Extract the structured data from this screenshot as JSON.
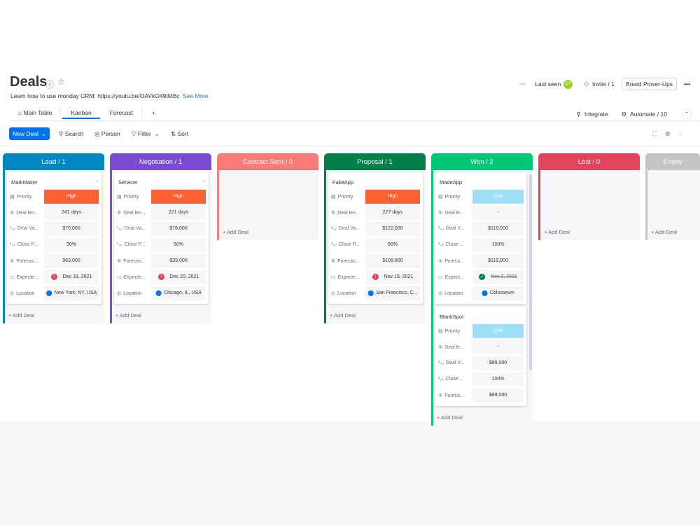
{
  "header": {
    "title": "Deals",
    "subtitle": "Learn how to use monday CRM: https://youtu.be/OAVkO49tMBc",
    "see_more": "See More",
    "last_seen": "Last seen",
    "avatar": "OT",
    "invite": "Invite / 1",
    "power_ups": "Board Power-Ups",
    "more": "•••"
  },
  "tabs": [
    {
      "label": "Main Table",
      "icon": "home-icon"
    },
    {
      "label": "Kanban"
    },
    {
      "label": "Forecast"
    },
    {
      "label": "+"
    }
  ],
  "tab_actions": {
    "integrate": "Integrate",
    "automate": "Automate / 10"
  },
  "toolbar": {
    "new_deal": "New Deal",
    "search": "Search",
    "person": "Person",
    "filter": "Filter",
    "sort": "Sort"
  },
  "colors": {
    "high": "#fd6132",
    "low": "#9fdff7",
    "lead": "#0086c0",
    "negotiation": "#784bd1",
    "contract": "#fb7b7b",
    "proposal": "#037f4c",
    "won": "#00c875",
    "lost": "#e2445c",
    "empty": "#c4c4c4"
  },
  "add_deal": "+ Add Deal",
  "columns": [
    {
      "title": "Lead / 1",
      "color": "#0086c0",
      "cards": [
        {
          "name": "MarkMaker",
          "fields": [
            [
              "Priority",
              "High",
              "high"
            ],
            [
              "Deal len...",
              "241 days"
            ],
            [
              "Deal Va...",
              "$70,000"
            ],
            [
              "Close P...",
              "90%"
            ],
            [
              "Forecas...",
              "$63,000"
            ],
            [
              "Expecte...",
              "Dec 18, 2021",
              "overdue"
            ],
            [
              "Location",
              "New York, NY, USA",
              "loc"
            ]
          ]
        }
      ]
    },
    {
      "title": "Negotiation / 1",
      "color": "#784bd1",
      "cards": [
        {
          "name": "Servicer",
          "fields": [
            [
              "Priority",
              "High",
              "high"
            ],
            [
              "Deal len...",
              "221 days"
            ],
            [
              "Deal Va...",
              "$78,000"
            ],
            [
              "Close P...",
              "50%"
            ],
            [
              "Forecas...",
              "$39,000"
            ],
            [
              "Expecte...",
              "Dec 20, 2021",
              "overdue"
            ],
            [
              "Location",
              "Chicago, IL, USA",
              "loc"
            ]
          ]
        }
      ]
    },
    {
      "title": "Contract Sent / 0",
      "color": "#fb7b7b",
      "cards": []
    },
    {
      "title": "Proposal / 1",
      "color": "#037f4c",
      "cards": [
        {
          "name": "FakeApp",
          "fields": [
            [
              "Priority",
              "High",
              "high"
            ],
            [
              "Deal len...",
              "227 days"
            ],
            [
              "Deal Va...",
              "$122,000"
            ],
            [
              "Close P...",
              "90%"
            ],
            [
              "Forecas...",
              "$109,800"
            ],
            [
              "Expecte...",
              "Nov 19, 2021",
              "overdue"
            ],
            [
              "Location",
              "San Francisco, C...",
              "loc"
            ]
          ]
        }
      ]
    },
    {
      "title": "Won / 2",
      "color": "#00c875",
      "cards": [
        {
          "name": "MadeApp",
          "fields": [
            [
              "Priority",
              "Low",
              "low"
            ],
            [
              "Deal le...",
              "-"
            ],
            [
              "Deal V...",
              "$119,000"
            ],
            [
              "Close ...",
              "100%"
            ],
            [
              "Foreca...",
              "$119,000"
            ],
            [
              "Expect...",
              "Nov 2, 2021",
              "done"
            ],
            [
              "Location",
              "Colosseum",
              "loc"
            ]
          ]
        },
        {
          "name": "BlankSpot",
          "fields": [
            [
              "Priority",
              "Low",
              "low"
            ],
            [
              "Deal le...",
              "-"
            ],
            [
              "Deal V...",
              "$89,000"
            ],
            [
              "Close ...",
              "100%"
            ],
            [
              "Foreca...",
              "$89,000"
            ]
          ]
        }
      ]
    },
    {
      "title": "Lost / 0",
      "color": "#e2445c",
      "cards": []
    },
    {
      "title": "Empty",
      "color": "#c4c4c4",
      "cards": []
    }
  ]
}
